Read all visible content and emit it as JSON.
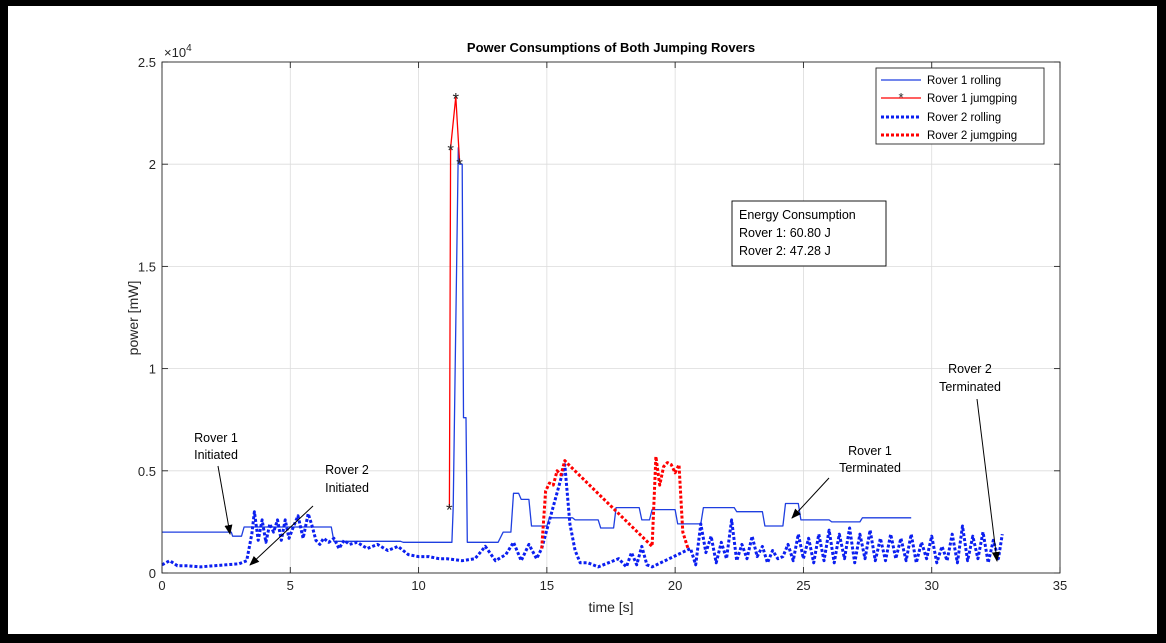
{
  "chart_data": {
    "type": "line",
    "title": "Power Consumptions of Both Jumping Rovers",
    "xlabel": "time [s]",
    "ylabel": "power [mW]",
    "xlim": [
      0,
      35
    ],
    "ylim": [
      0,
      25000
    ],
    "x_ticks": [
      0,
      5,
      10,
      15,
      20,
      25,
      30,
      35
    ],
    "x_tick_labels": [
      "0",
      "5",
      "10",
      "15",
      "20",
      "25",
      "30",
      "35"
    ],
    "y_ticks": [
      0,
      5000,
      10000,
      15000,
      20000,
      25000
    ],
    "y_tick_labels": [
      "0",
      "0.5",
      "1",
      "1.5",
      "2",
      "2.5"
    ],
    "y_exponent_label": "×10",
    "y_exponent_power": "4",
    "grid": true,
    "legend_position": "top-right",
    "colors": {
      "rover1": "#1f3fe0",
      "rover1_jump": "#ff0000",
      "rover2": "#0b1ff0",
      "rover2_jump": "#ff0000"
    },
    "series": [
      {
        "name": "Rover 1 rolling",
        "style": "solid",
        "color": "#1f3fe0",
        "x": [
          0,
          2.7,
          2.75,
          3.1,
          3.2,
          6.6,
          6.7,
          9.3,
          9.4,
          11.3,
          11.35,
          11.55,
          11.6,
          11.7,
          11.75,
          11.85,
          11.9,
          12.0,
          12.05,
          13.1,
          13.3,
          13.6,
          13.7,
          13.9,
          14.0,
          14.3,
          14.4,
          15.0,
          15.1,
          16.0,
          16.1,
          17.0,
          17.1,
          17.6,
          17.7,
          18.6,
          18.7,
          19.0,
          19.1,
          20.0,
          20.1,
          21.0,
          21.1,
          22.3,
          22.4,
          23.4,
          23.5,
          24.2,
          24.3,
          24.8,
          24.9,
          26.0,
          26.1,
          27.2,
          27.3,
          29.2
        ],
        "y": [
          2000,
          2000,
          1800,
          1800,
          2250,
          2250,
          1550,
          1550,
          1500,
          1500,
          3200,
          20800,
          20000,
          20000,
          7600,
          7600,
          1500,
          1500,
          1500,
          1500,
          2000,
          2000,
          3900,
          3900,
          3600,
          3600,
          2300,
          2300,
          2700,
          2700,
          2600,
          2600,
          2200,
          2200,
          3200,
          3200,
          2600,
          2600,
          3100,
          3100,
          2400,
          2400,
          3200,
          3200,
          3000,
          3000,
          2300,
          2300,
          3400,
          3400,
          2600,
          2600,
          2500,
          2500,
          2700,
          2700
        ]
      },
      {
        "name": "Rover 1 jumgping",
        "style": "solid-star",
        "color": "#ff0000",
        "x": [
          11.2,
          11.25,
          11.45,
          11.6
        ],
        "y": [
          3200,
          20800,
          23300,
          20100
        ]
      },
      {
        "name": "Rover 2 rolling",
        "style": "dotted",
        "color": "#0b1ff0",
        "x": [
          0,
          0.3,
          0.6,
          1.0,
          1.5,
          2.0,
          2.5,
          3.0,
          3.3,
          3.5,
          3.6,
          3.75,
          3.9,
          4.05,
          4.2,
          4.35,
          4.5,
          4.65,
          4.8,
          4.95,
          5.1,
          5.3,
          5.5,
          5.7,
          5.85,
          6.0,
          6.15,
          6.3,
          6.5,
          6.7,
          6.9,
          7.1,
          7.3,
          7.6,
          8.0,
          8.4,
          8.8,
          9.2,
          9.6,
          10.0,
          10.4,
          10.8,
          11.1,
          11.7,
          12.2,
          12.6,
          13.0,
          13.4,
          13.7,
          14.0,
          14.3,
          14.6,
          14.8,
          15.7,
          15.9,
          16.1,
          16.3,
          16.6,
          17.0,
          17.4,
          17.8,
          18.1,
          18.3,
          18.5,
          18.7,
          18.9,
          19.1,
          20.6,
          20.8,
          21.0,
          21.2,
          21.4,
          21.6,
          21.8,
          22.0,
          22.2,
          22.4,
          22.6,
          22.8,
          23.0,
          23.2,
          23.4,
          23.6,
          23.8,
          24.0,
          24.2,
          24.4,
          24.6,
          24.8,
          25.0,
          25.2,
          25.4,
          25.6,
          25.8,
          26.0,
          26.2,
          26.4,
          26.6,
          26.8,
          27.0,
          27.2,
          27.4,
          27.6,
          27.8,
          28.0,
          28.2,
          28.4,
          28.6,
          28.8,
          29.0,
          29.2,
          29.4,
          29.6,
          29.8,
          30.0,
          30.2,
          30.4,
          30.6,
          30.8,
          31.0,
          31.2,
          31.4,
          31.6,
          31.8,
          32.0,
          32.2,
          32.4,
          32.6,
          32.75
        ],
        "y": [
          400,
          600,
          350,
          350,
          300,
          350,
          400,
          450,
          600,
          1900,
          3000,
          1600,
          2600,
          1500,
          2400,
          2000,
          2600,
          1600,
          2600,
          1700,
          2200,
          2800,
          1700,
          2900,
          2300,
          1600,
          1400,
          1700,
          1500,
          1700,
          1200,
          1600,
          1400,
          1500,
          1200,
          1400,
          1100,
          1300,
          900,
          800,
          800,
          700,
          700,
          600,
          700,
          1300,
          600,
          900,
          1500,
          600,
          1400,
          700,
          1200,
          5300,
          2400,
          1100,
          500,
          500,
          300,
          500,
          700,
          300,
          1000,
          400,
          1300,
          400,
          300,
          1200,
          400,
          2400,
          1000,
          1800,
          500,
          1500,
          700,
          2600,
          600,
          1400,
          700,
          1800,
          800,
          1300,
          500,
          1100,
          700,
          800,
          1400,
          600,
          1900,
          700,
          1700,
          500,
          1900,
          600,
          2100,
          500,
          1900,
          700,
          2200,
          500,
          1900,
          700,
          2100,
          600,
          1700,
          600,
          1900,
          700,
          1700,
          600,
          1900,
          500,
          1500,
          700,
          1800,
          500,
          1300,
          600,
          1900,
          500,
          2300,
          600,
          1800,
          700,
          2000,
          500,
          1600,
          700,
          1900
        ]
      },
      {
        "name": "Rover 2 jumgping",
        "style": "dotted",
        "color": "#ff0000",
        "x": [
          14.8,
          14.95,
          15.1,
          15.25,
          15.4,
          15.55,
          15.7,
          15.85,
          19.1,
          19.25,
          19.4,
          19.55,
          19.7,
          19.85,
          20.0,
          20.15,
          20.3,
          20.5
        ],
        "y": [
          1200,
          4000,
          4400,
          4300,
          5000,
          4800,
          5500,
          5300,
          1300,
          5700,
          4300,
          5200,
          5400,
          5300,
          4900,
          5300,
          2000,
          1200
        ]
      }
    ],
    "annotations": [
      {
        "lines": [
          "Rover 1",
          "Initiated"
        ]
      },
      {
        "lines": [
          "Rover 2",
          "Initiated"
        ]
      },
      {
        "lines": [
          "Rover 1",
          "Terminated"
        ]
      },
      {
        "lines": [
          "Rover 2",
          "Terminated"
        ]
      }
    ],
    "info_box": {
      "lines": [
        "Energy Consumption",
        "Rover 1: 60.80 J",
        "Rover 2: 47.28 J"
      ]
    }
  }
}
